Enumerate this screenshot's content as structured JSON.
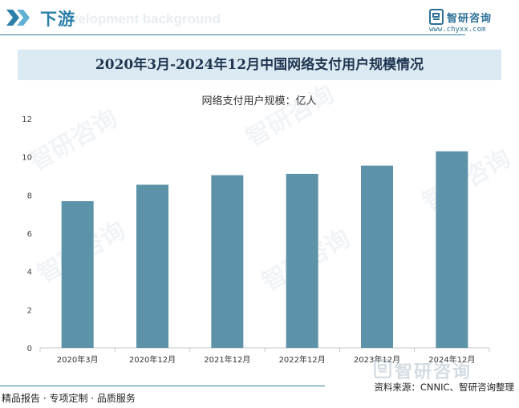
{
  "header": {
    "title": "下游",
    "watermark_text": "velopment background"
  },
  "brand": {
    "name": "智研咨询",
    "url": "www.chyxx.com"
  },
  "watermarks": {
    "text": "智研咨询"
  },
  "chart_data": {
    "type": "bar",
    "title": "2020年3月-2024年12月中国网络支付用户规模情况",
    "legend_label": "网络支付用户规模：亿人",
    "categories": [
      "2020年3月",
      "2020年12月",
      "2021年12月",
      "2022年12月",
      "2023年12月",
      "2024年12月"
    ],
    "values": [
      7.68,
      8.54,
      9.04,
      9.11,
      9.54,
      10.29
    ],
    "ylim": [
      0,
      12
    ],
    "yticks": [
      "0",
      "2",
      "4",
      "6",
      "8",
      "10",
      "12"
    ],
    "grid": false,
    "bar_color": "#5d93a9"
  },
  "footer": {
    "left_text": "精品报告 · 专项定制 · 品质服务",
    "source": "资料来源：CNNIC、智研咨询整理",
    "brand_watermark": "智研咨询"
  }
}
